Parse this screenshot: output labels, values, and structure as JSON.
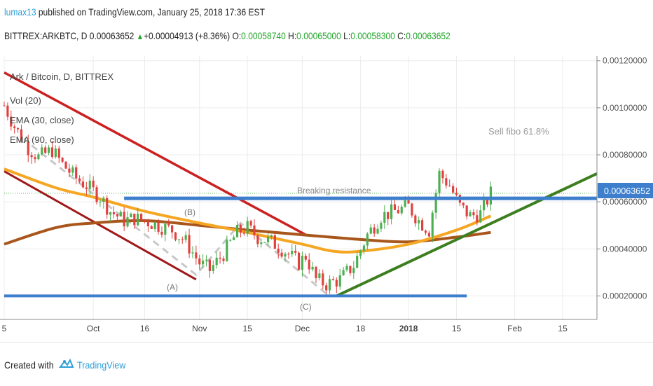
{
  "header": {
    "user": "lumax13",
    "published_text": " published on TradingView.com, January 25, 2018 17:36 EST",
    "symbol_line": "BITTREX:ARKBTC, D ",
    "last_price": "0.00063652",
    "change": "+0.00004913 (+8.36%)",
    "open_label": "O:",
    "open": "0.00058740",
    "high_label": "H:",
    "high": "0.00065000",
    "low_label": "L:",
    "low": "0.00058300",
    "close_label": "C:",
    "close": "0.00063652"
  },
  "legend": {
    "title": "Ark / Bitcoin, D, BITTREX",
    "vol": "Vol (20)",
    "ema30": "EMA (30, close)",
    "ema90": "EMA (90, close)"
  },
  "annotations": {
    "sell_fibo": "Sell  fibo 61.8%",
    "breaking_resistance": "Breaking resistance",
    "wave_a": "(A)",
    "wave_b": "(B)",
    "wave_c": "(C)"
  },
  "price_badge": "0.00063652",
  "footer": {
    "created_with": "Created with",
    "brand": "TradingView"
  },
  "colors": {
    "up": "#4caf50",
    "down": "#e0413e",
    "ema30": "#f5a623",
    "ema90": "#a8561c",
    "trend_red": "#cc2020",
    "trend_dark_red": "#a01818",
    "trend_green": "#3d7e1f",
    "resistance": "#3d7fcc",
    "badge": "#3d7fcc",
    "abc_dash": "#c8c8c8"
  },
  "chart_data": {
    "type": "candlestick",
    "title": "Ark / Bitcoin, D, BITTREX",
    "x_axis": {
      "start_date": "2017-09-05",
      "end_date": "2018-02-25",
      "tick_labels": [
        "5",
        "Oct",
        "16",
        "Nov",
        "15",
        "Dec",
        "18",
        "2018",
        "15",
        "Feb",
        "15"
      ],
      "tick_dates": [
        "2017-09-05",
        "2017-10-01",
        "2017-10-16",
        "2017-11-01",
        "2017-11-15",
        "2017-12-01",
        "2017-12-18",
        "2018-01-01",
        "2018-01-15",
        "2018-02-01",
        "2018-02-15"
      ]
    },
    "y_axis": {
      "range": [
        0.0001,
        0.00122
      ],
      "tick_labels": [
        "0.00020000",
        "0.00040000",
        "0.00060000",
        "0.00080000",
        "0.00100000",
        "0.00120000"
      ],
      "tick_values": [
        0.0002,
        0.0004,
        0.0006,
        0.0008,
        0.001,
        0.0012
      ],
      "side": "right"
    },
    "close_series": [
      [
        "2017-09-05",
        0.00101
      ],
      [
        "2017-09-08",
        0.00092
      ],
      [
        "2017-09-12",
        0.00083
      ],
      [
        "2017-09-15",
        0.00079
      ],
      [
        "2017-09-19",
        0.00082
      ],
      [
        "2017-09-22",
        0.00076
      ],
      [
        "2017-09-26",
        0.0007
      ],
      [
        "2017-09-29",
        0.00067
      ],
      [
        "2017-10-03",
        0.00062
      ],
      [
        "2017-10-06",
        0.00056
      ],
      [
        "2017-10-10",
        0.00052
      ],
      [
        "2017-10-13",
        0.00053
      ],
      [
        "2017-10-16",
        0.00052
      ],
      [
        "2017-10-20",
        0.0005
      ],
      [
        "2017-10-24",
        0.00048
      ],
      [
        "2017-10-28",
        0.00043
      ],
      [
        "2017-11-01",
        0.00034
      ],
      [
        "2017-11-04",
        0.00031
      ],
      [
        "2017-11-08",
        0.00038
      ],
      [
        "2017-11-12",
        0.00047
      ],
      [
        "2017-11-15",
        0.00049
      ],
      [
        "2017-11-18",
        0.00045
      ],
      [
        "2017-11-22",
        0.00043
      ],
      [
        "2017-11-26",
        0.00039
      ],
      [
        "2017-11-30",
        0.00034
      ],
      [
        "2017-12-02",
        0.00037
      ],
      [
        "2017-12-05",
        0.00027
      ],
      [
        "2017-12-08",
        0.00025
      ],
      [
        "2017-12-12",
        0.00027
      ],
      [
        "2017-12-16",
        0.00033
      ],
      [
        "2017-12-20",
        0.00046
      ],
      [
        "2017-12-24",
        0.00054
      ],
      [
        "2017-12-28",
        0.00056
      ],
      [
        "2018-01-01",
        0.00058
      ],
      [
        "2018-01-04",
        0.00052
      ],
      [
        "2018-01-07",
        0.00048
      ],
      [
        "2018-01-10",
        0.00072
      ],
      [
        "2018-01-13",
        0.00067
      ],
      [
        "2018-01-16",
        0.00058
      ],
      [
        "2018-01-19",
        0.00054
      ],
      [
        "2018-01-22",
        0.00055
      ],
      [
        "2018-01-25",
        0.00063652
      ]
    ],
    "ema30": [
      [
        "2017-09-05",
        0.00074
      ],
      [
        "2017-09-20",
        0.00066
      ],
      [
        "2017-10-01",
        0.00062
      ],
      [
        "2017-10-16",
        0.00056
      ],
      [
        "2017-11-01",
        0.00051
      ],
      [
        "2017-11-15",
        0.00047
      ],
      [
        "2017-12-01",
        0.00042
      ],
      [
        "2017-12-10",
        0.00039
      ],
      [
        "2017-12-18",
        0.00039
      ],
      [
        "2018-01-01",
        0.00042
      ],
      [
        "2018-01-15",
        0.00048
      ],
      [
        "2018-01-25",
        0.00054
      ]
    ],
    "ema90": [
      [
        "2017-09-05",
        0.00042
      ],
      [
        "2017-09-20",
        0.00049
      ],
      [
        "2017-10-01",
        0.00051
      ],
      [
        "2017-10-16",
        0.00052
      ],
      [
        "2017-11-01",
        0.0005
      ],
      [
        "2017-11-15",
        0.00048
      ],
      [
        "2017-12-01",
        0.00046
      ],
      [
        "2017-12-18",
        0.00044
      ],
      [
        "2018-01-01",
        0.00043
      ],
      [
        "2018-01-15",
        0.00045
      ],
      [
        "2018-01-25",
        0.00047
      ]
    ],
    "trendlines": [
      {
        "name": "upper-red",
        "from": [
          "2017-09-05",
          0.00115
        ],
        "to": [
          "2017-12-02",
          0.00046
        ]
      },
      {
        "name": "lower-red",
        "from": [
          "2017-09-05",
          0.00073
        ],
        "to": [
          "2017-10-31",
          0.00027
        ]
      },
      {
        "name": "green-support",
        "from": [
          "2017-12-11",
          0.0002
        ],
        "to": [
          "2018-02-25",
          0.00072
        ]
      },
      {
        "name": "resistance",
        "from": [
          "2017-10-10",
          0.000615
        ],
        "to": [
          "2018-02-25",
          0.000615
        ]
      },
      {
        "name": "bottom-support",
        "from": [
          "2017-09-05",
          0.0002
        ],
        "to": [
          "2018-01-18",
          0.0002
        ]
      }
    ],
    "abc_path": [
      [
        "2017-09-13",
        0.00084
      ],
      [
        "2017-10-31",
        0.00029
      ],
      [
        "2017-11-13",
        0.00051
      ],
      [
        "2017-12-08",
        0.00021
      ]
    ],
    "last_value": 0.00063652
  }
}
